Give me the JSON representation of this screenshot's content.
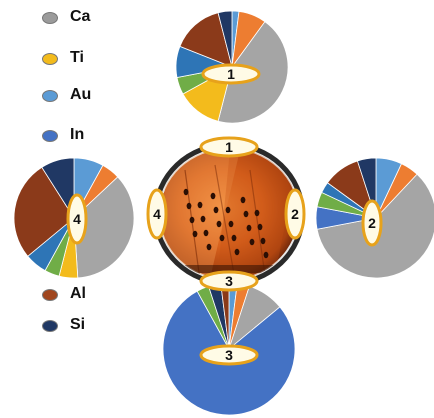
{
  "legend": [
    {
      "label": "Ca",
      "color": "#9b9b9b",
      "icon": "gray-blob-icon"
    },
    {
      "label": "Ti",
      "color": "#f3bb1c",
      "icon": "yellow-blob-icon"
    },
    {
      "label": "Au",
      "color": "#5b9bd5",
      "icon": "light-blue-blob-icon"
    },
    {
      "label": "In",
      "color": "#4472c4",
      "icon": "blue-blob-icon"
    },
    {
      "label": "Al",
      "color": "#a0461e",
      "icon": "brown-blob-icon"
    },
    {
      "label": "Si",
      "color": "#203864",
      "icon": "dark-navy-blob-icon"
    }
  ],
  "pies": [
    {
      "label": "1",
      "slices": [
        {
          "color": "#5b9bd5",
          "value": 2
        },
        {
          "color": "#ed7d31",
          "value": 8
        },
        {
          "color": "#a5a5a5",
          "value": 44
        },
        {
          "color": "#f3bb1c",
          "value": 13
        },
        {
          "color": "#70ad47",
          "value": 5
        },
        {
          "color": "#2e75b6",
          "value": 9
        },
        {
          "color": "#8b3a1a",
          "value": 15
        },
        {
          "color": "#203864",
          "value": 4
        }
      ]
    },
    {
      "label": "2",
      "slices": [
        {
          "color": "#5b9bd5",
          "value": 7
        },
        {
          "color": "#ed7d31",
          "value": 5
        },
        {
          "color": "#a5a5a5",
          "value": 60
        },
        {
          "color": "#4472c4",
          "value": 6
        },
        {
          "color": "#70ad47",
          "value": 4
        },
        {
          "color": "#2e75b6",
          "value": 3
        },
        {
          "color": "#8b3a1a",
          "value": 10
        },
        {
          "color": "#203864",
          "value": 5
        }
      ]
    },
    {
      "label": "3",
      "slices": [
        {
          "color": "#5b9bd5",
          "value": 2
        },
        {
          "color": "#ed7d31",
          "value": 3
        },
        {
          "color": "#a5a5a5",
          "value": 9
        },
        {
          "color": "#4472c4",
          "value": 78
        },
        {
          "color": "#70ad47",
          "value": 3
        },
        {
          "color": "#203864",
          "value": 3
        },
        {
          "color": "#8b3a1a",
          "value": 2
        }
      ]
    },
    {
      "label": "4",
      "slices": [
        {
          "color": "#5b9bd5",
          "value": 8
        },
        {
          "color": "#ed7d31",
          "value": 5
        },
        {
          "color": "#a5a5a5",
          "value": 36
        },
        {
          "color": "#f3bb1c",
          "value": 5
        },
        {
          "color": "#70ad47",
          "value": 4
        },
        {
          "color": "#2e75b6",
          "value": 6
        },
        {
          "color": "#8b3a1a",
          "value": 27
        },
        {
          "color": "#203864",
          "value": 9
        }
      ]
    }
  ],
  "wafer_labels": [
    "1",
    "2",
    "3",
    "4"
  ]
}
